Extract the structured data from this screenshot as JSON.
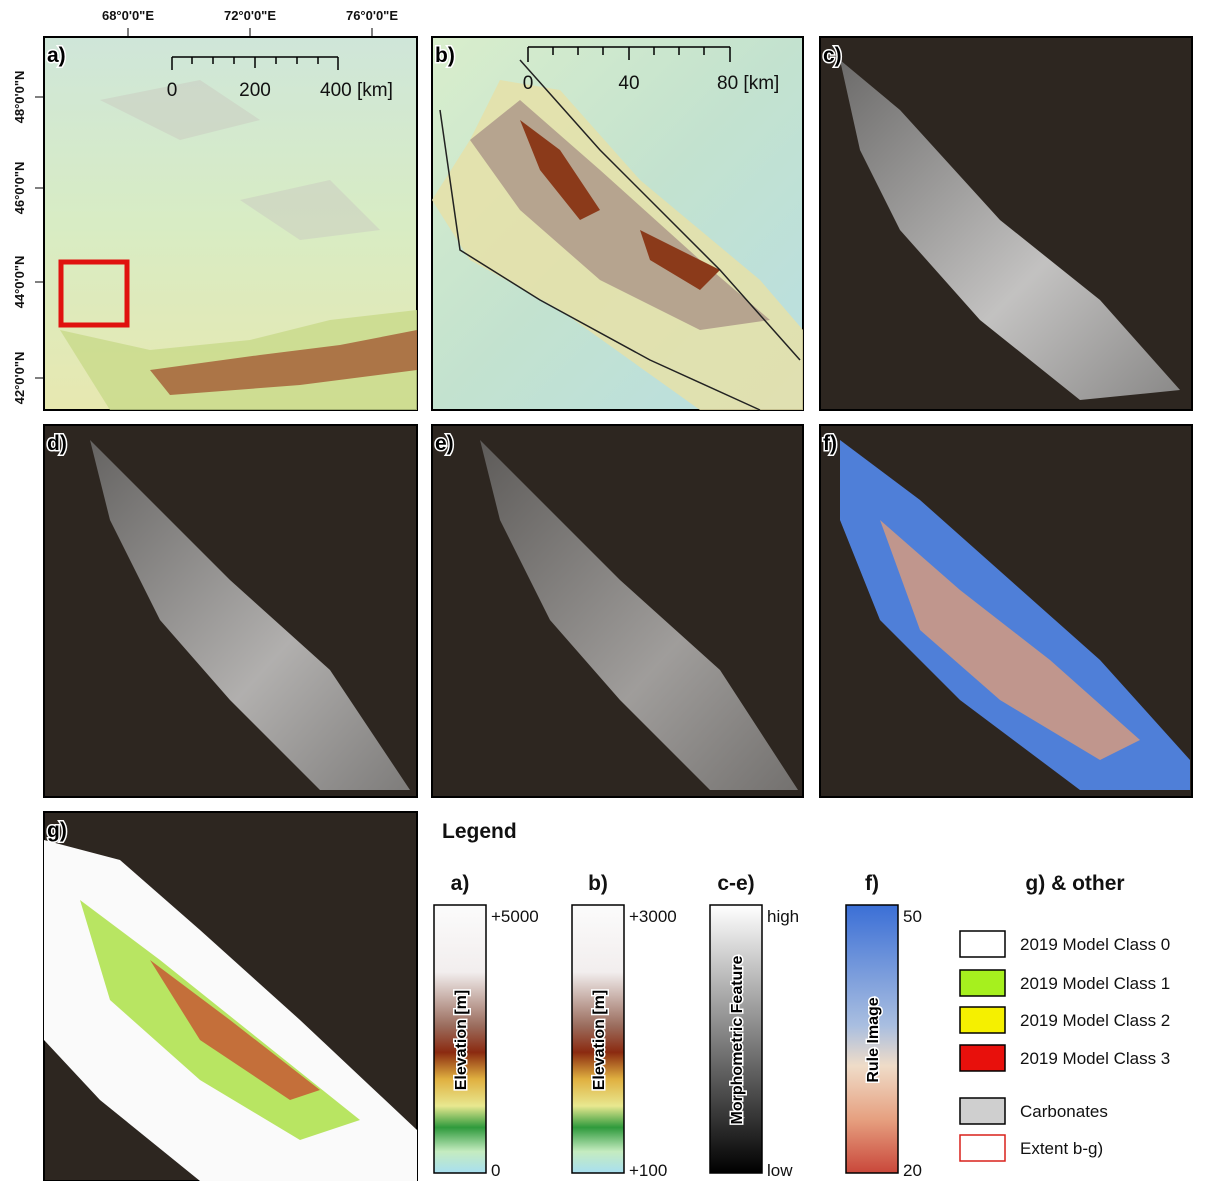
{
  "coordinates": {
    "longitudes": [
      "68°0'0\"E",
      "72°0'0\"E",
      "76°0'0\"E"
    ],
    "latitudes": [
      "48°0'0\"N",
      "46°0'0\"N",
      "44°0'0\"N",
      "42°0'0\"N"
    ]
  },
  "panels": [
    {
      "label": "a)",
      "scale_bar": [
        "0",
        "200",
        "400 [km]"
      ]
    },
    {
      "label": "b)",
      "scale_bar": [
        "0",
        "40",
        "80 [km]"
      ]
    },
    {
      "label": "c)"
    },
    {
      "label": "d)"
    },
    {
      "label": "e)"
    },
    {
      "label": "f)"
    },
    {
      "label": "g)"
    }
  ],
  "legend": {
    "title": "Legend",
    "ramps": [
      {
        "heading": "a)",
        "label": "Elevation [m]",
        "top": "+5000",
        "bottom": "0"
      },
      {
        "heading": "b)",
        "label": "Elevation [m]",
        "top": "+3000",
        "bottom": "+100"
      },
      {
        "heading": "c-e)",
        "label": "Morphometric Feature",
        "top": "high",
        "bottom": "low"
      },
      {
        "heading": "f)",
        "label": "Rule Image",
        "top": "50",
        "bottom": "20"
      }
    ],
    "classes_heading": "g) & other",
    "classes": [
      "2019 Model Class 0",
      "2019 Model Class 1",
      "2019 Model Class 2",
      "2019 Model Class 3",
      "Carbonates",
      "Extent b-g)"
    ]
  }
}
